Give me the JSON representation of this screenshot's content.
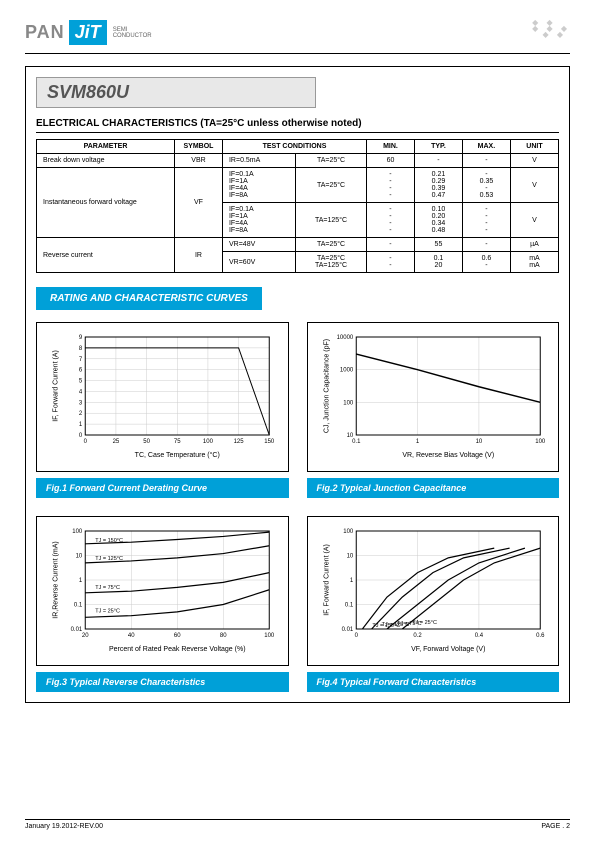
{
  "header": {
    "logo_pan": "PAN",
    "logo_jit": "JiT",
    "logo_sub1": "SEMI",
    "logo_sub2": "CONDUCTOR"
  },
  "part_number": "SVM860U",
  "elec_char_title": "ELECTRICAL CHARACTERISTICS (TA=25°C unless otherwise noted)",
  "table": {
    "headers": [
      "PARAMETER",
      "SYMBOL",
      "TEST CONDITIONS",
      "MIN.",
      "TYP.",
      "MAX.",
      "UNIT"
    ],
    "rows": [
      {
        "param": "Break down voltage",
        "symbol": "VBR",
        "cond1": "IR=0.5mA",
        "cond2": "TA=25°C",
        "min": "60",
        "typ": "-",
        "max": "-",
        "unit": "V"
      },
      {
        "param": "Instantaneous forward voltage",
        "symbol": "VF",
        "groups": [
          {
            "cond1": "IF=0.1A\nIF=1A\nIF=4A\nIF=8A",
            "cond2": "TA=25°C",
            "min": "-\n-\n-\n-",
            "typ": "0.21\n0.29\n0.39\n0.47",
            "max": "-\n0.35\n-\n0.53",
            "unit": "V"
          },
          {
            "cond1": "IF=0.1A\nIF=1A\nIF=4A\nIF=8A",
            "cond2": "TA=125°C",
            "min": "-\n-\n-\n-",
            "typ": "0.10\n0.20\n0.34\n0.48",
            "max": "-\n-\n-\n-",
            "unit": "V"
          }
        ]
      },
      {
        "param": "Reverse current",
        "symbol": "IR",
        "groups": [
          {
            "cond1": "VR=48V",
            "cond2": "TA=25°C",
            "min": "-",
            "typ": "55",
            "max": "-",
            "unit": "µA"
          },
          {
            "cond1": "VR=60V",
            "cond2": "TA=25°C\nTA=125°C",
            "min": "-\n-",
            "typ": "0.1\n20",
            "max": "0.6\n-",
            "unit": "mA\nmA"
          }
        ]
      }
    ]
  },
  "curves_title": "RATING AND CHARACTERISTIC CURVES",
  "fig1": {
    "caption": "Fig.1 Forward Current Derating Curve",
    "xlabel": "TC, Case Temperature (°C)",
    "ylabel": "IF, Forward Current (A)",
    "xlim": [
      0,
      150
    ],
    "ylim": [
      0,
      9
    ],
    "xticks": [
      0,
      25,
      50,
      75,
      100,
      125,
      150
    ],
    "yticks": [
      0,
      1,
      2,
      3,
      4,
      5,
      6,
      7,
      8,
      9
    ],
    "line": [
      [
        0,
        8
      ],
      [
        125,
        8
      ],
      [
        150,
        0
      ]
    ],
    "line_color": "#000",
    "line_width": 1
  },
  "fig2": {
    "caption": "Fig.2 Typical Junction Capacitance",
    "xlabel": "VR, Reverse Bias Voltage (V)",
    "ylabel": "CJ, Junction Capacitance (pF)",
    "xlim": [
      0.1,
      100
    ],
    "ylim": [
      10,
      10000
    ],
    "scale": "loglog",
    "xticks": [
      0.1,
      1,
      10,
      100
    ],
    "yticks": [
      10,
      100,
      1000,
      10000
    ],
    "line": [
      [
        0.1,
        3000
      ],
      [
        1,
        1000
      ],
      [
        10,
        300
      ],
      [
        100,
        100
      ]
    ],
    "line_color": "#000",
    "line_width": 1.5
  },
  "fig3": {
    "caption": "Fig.3 Typical Reverse Characteristics",
    "xlabel": "Percent of Rated Peak Reverse Voltage (%)",
    "ylabel": "IR,Reverse Current (mA)",
    "xlim": [
      20,
      100
    ],
    "ylim": [
      0.01,
      100
    ],
    "yscale": "log",
    "xticks": [
      20,
      40,
      60,
      80,
      100
    ],
    "yticks": [
      0.01,
      0.1,
      1,
      10,
      100
    ],
    "series": [
      {
        "label": "TJ = 150°C",
        "points": [
          [
            20,
            30
          ],
          [
            40,
            35
          ],
          [
            60,
            45
          ],
          [
            80,
            60
          ],
          [
            100,
            90
          ]
        ]
      },
      {
        "label": "TJ = 125°C",
        "points": [
          [
            20,
            5
          ],
          [
            40,
            6
          ],
          [
            60,
            8
          ],
          [
            80,
            12
          ],
          [
            100,
            25
          ]
        ]
      },
      {
        "label": "TJ = 75°C",
        "points": [
          [
            20,
            0.3
          ],
          [
            40,
            0.35
          ],
          [
            60,
            0.5
          ],
          [
            80,
            0.8
          ],
          [
            100,
            2
          ]
        ]
      },
      {
        "label": "TJ = 25°C",
        "points": [
          [
            20,
            0.03
          ],
          [
            40,
            0.035
          ],
          [
            60,
            0.05
          ],
          [
            80,
            0.1
          ],
          [
            100,
            0.4
          ]
        ]
      }
    ],
    "line_color": "#000",
    "line_width": 1.2
  },
  "fig4": {
    "caption": "Fig.4 Typical Forward Characteristics",
    "xlabel": "VF, Forward Voltage (V)",
    "ylabel": "IF, Forward Current (A)",
    "xlim": [
      0,
      0.6
    ],
    "ylim": [
      0.01,
      100
    ],
    "yscale": "log",
    "xticks": [
      0,
      0.2,
      0.4,
      0.6
    ],
    "yticks": [
      0.01,
      0.1,
      1,
      10,
      100
    ],
    "series": [
      {
        "label": "TJ = 150°C",
        "points": [
          [
            0.02,
            0.01
          ],
          [
            0.1,
            0.2
          ],
          [
            0.2,
            2
          ],
          [
            0.3,
            8
          ],
          [
            0.45,
            20
          ]
        ]
      },
      {
        "label": "TJ = 125°C",
        "points": [
          [
            0.05,
            0.01
          ],
          [
            0.15,
            0.2
          ],
          [
            0.25,
            2
          ],
          [
            0.35,
            8
          ],
          [
            0.5,
            20
          ]
        ]
      },
      {
        "label": "TJ = 75°C",
        "points": [
          [
            0.1,
            0.01
          ],
          [
            0.2,
            0.1
          ],
          [
            0.3,
            1
          ],
          [
            0.4,
            5
          ],
          [
            0.55,
            20
          ]
        ]
      },
      {
        "label": "TJ = 25°C",
        "points": [
          [
            0.15,
            0.01
          ],
          [
            0.25,
            0.1
          ],
          [
            0.35,
            1
          ],
          [
            0.45,
            5
          ],
          [
            0.6,
            20
          ]
        ]
      }
    ],
    "line_color": "#000",
    "line_width": 1.2
  },
  "footer": {
    "left": "January 19.2012-REV.00",
    "right": "PAGE .  2"
  }
}
